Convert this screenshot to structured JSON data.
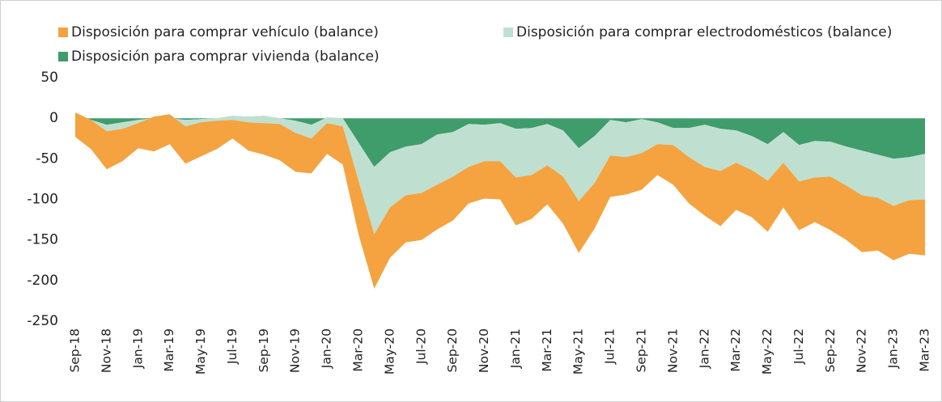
{
  "chart_data": {
    "type": "stacked_area",
    "categories": [
      "Sep-18",
      null,
      "Nov-18",
      null,
      "Jan-19",
      null,
      "Mar-19",
      null,
      "May-19",
      null,
      "Jul-19",
      null,
      "Sep-19",
      null,
      "Nov-19",
      null,
      "Jan-20",
      null,
      "Mar-20",
      null,
      "May-20",
      null,
      "Jul-20",
      null,
      "Sep-20",
      null,
      "Nov-20",
      null,
      "Jan-21",
      null,
      "Mar-21",
      null,
      "May-21",
      null,
      "Jul-21",
      null,
      "Sep-21",
      null,
      "Nov-21",
      null,
      "Jan-22",
      null,
      "Mar-22",
      null,
      "May-22",
      null,
      "Jul-22",
      null,
      "Sep-22",
      null,
      "Nov-22",
      null,
      "Jan-23",
      null,
      "Mar-23"
    ],
    "series": [
      {
        "name": "Disposición para comprar vehículo (balance)",
        "color": "#f4a340",
        "values": [
          -30,
          -36,
          -47,
          -40,
          -31,
          -43,
          -37,
          -46,
          -42,
          -35,
          -23,
          -35,
          -39,
          -45,
          -48,
          -43,
          -38,
          -47,
          -66,
          -67,
          -62,
          -58,
          -58,
          -55,
          -54,
          -45,
          -46,
          -47,
          -59,
          -54,
          -48,
          -58,
          -64,
          -56,
          -51,
          -46,
          -45,
          -38,
          -49,
          -57,
          -60,
          -68,
          -58,
          -58,
          -63,
          -55,
          -60,
          -55,
          -66,
          -67,
          -70,
          -65,
          -67,
          -66,
          -69
        ]
      },
      {
        "name": "Disposición para comprar electrodomésticos (balance)",
        "color": "#bfe0d0",
        "values": [
          5,
          0,
          -8,
          -8,
          -4,
          2,
          5,
          -8,
          -4,
          -3,
          -5,
          -7,
          -9,
          -7,
          -15,
          -17,
          -7,
          -10,
          -47,
          -83,
          -68,
          -60,
          -60,
          -62,
          -55,
          -53,
          -45,
          -47,
          -60,
          -58,
          -51,
          -57,
          -65,
          -58,
          -44,
          -43,
          -42,
          -27,
          -21,
          -36,
          -52,
          -52,
          -40,
          -42,
          -45,
          -38,
          -45,
          -45,
          -43,
          -48,
          -55,
          -53,
          -58,
          -53,
          -56
        ]
      },
      {
        "name": "Disposición para comprar vivienda (balance)",
        "color": "#3f9c6b",
        "values": [
          2,
          -2,
          -8,
          -5,
          -2,
          0,
          0,
          -2,
          -1,
          0,
          3,
          2,
          3,
          0,
          -3,
          -8,
          1,
          0,
          -30,
          -60,
          -42,
          -35,
          -32,
          -20,
          -17,
          -7,
          -8,
          -6,
          -13,
          -12,
          -7,
          -15,
          -37,
          -22,
          -2,
          -5,
          -1,
          -5,
          -12,
          -12,
          -8,
          -13,
          -15,
          -22,
          -32,
          -17,
          -33,
          -28,
          -29,
          -35,
          -40,
          -45,
          -50,
          -48,
          -44
        ]
      }
    ],
    "ylim": [
      -250,
      50
    ],
    "yticks": [
      -250,
      -200,
      -150,
      -100,
      -50,
      0,
      50
    ]
  }
}
